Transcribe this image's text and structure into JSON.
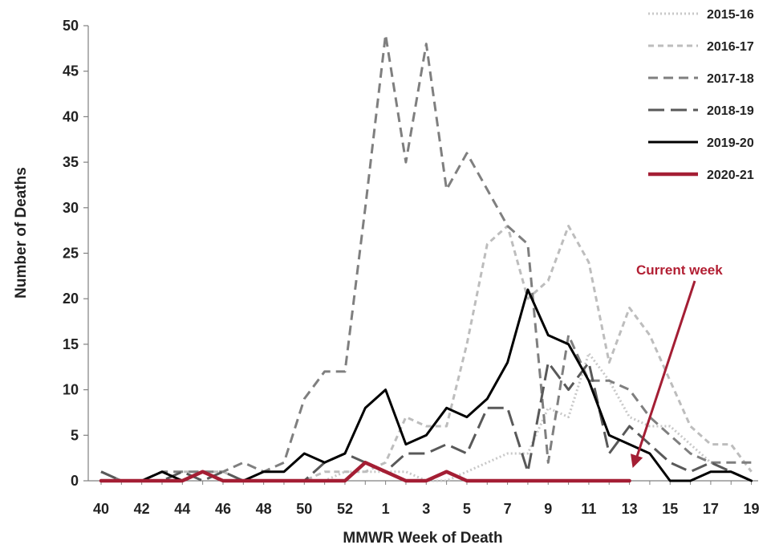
{
  "chart_data": {
    "type": "line",
    "xlabel": "MMWR Week of Death",
    "ylabel": "Number of Deaths",
    "ylim": [
      0,
      50
    ],
    "y_ticks": [
      0,
      5,
      10,
      15,
      20,
      25,
      30,
      35,
      40,
      45,
      50
    ],
    "x_categories": [
      "40",
      "41",
      "42",
      "43",
      "44",
      "45",
      "46",
      "47",
      "48",
      "49",
      "50",
      "51",
      "52",
      "53",
      "1",
      "2",
      "3",
      "4",
      "5",
      "6",
      "7",
      "8",
      "9",
      "10",
      "11",
      "12",
      "13",
      "14",
      "15",
      "16",
      "17",
      "18",
      "19"
    ],
    "x_tick_labels": [
      "40",
      "42",
      "44",
      "46",
      "48",
      "50",
      "52",
      "1",
      "3",
      "5",
      "7",
      "9",
      "11",
      "13",
      "15",
      "17",
      "19"
    ],
    "grid": false,
    "legend_position": "top-right",
    "series": [
      {
        "name": "2015-16",
        "color": "#c8c8c8",
        "style": "dotted",
        "values": [
          1,
          0,
          0,
          0,
          0,
          1,
          0,
          0,
          0,
          0,
          0,
          0,
          1,
          1,
          1,
          1,
          0,
          0,
          1,
          2,
          3,
          3,
          8,
          7,
          14,
          11,
          7,
          6,
          6,
          4,
          2,
          1,
          0
        ]
      },
      {
        "name": "2016-17",
        "color": "#bdbdbd",
        "style": "short-dash",
        "values": [
          1,
          0,
          0,
          0,
          1,
          1,
          1,
          0,
          0,
          0,
          0,
          1,
          1,
          1,
          2,
          7,
          6,
          6,
          15,
          26,
          28,
          20,
          22,
          28,
          24,
          13,
          19,
          16,
          11,
          6,
          4,
          4,
          1
        ]
      },
      {
        "name": "2017-18",
        "color": "#7f7f7f",
        "style": "dash",
        "values": [
          1,
          0,
          0,
          1,
          1,
          1,
          1,
          2,
          1,
          2,
          9,
          12,
          12,
          30,
          49,
          35,
          48,
          32,
          36,
          32,
          28,
          26,
          2,
          16,
          11,
          11,
          10,
          7,
          5,
          3,
          2,
          2,
          2
        ]
      },
      {
        "name": "2018-19",
        "color": "#595959",
        "style": "long-dash",
        "values": [
          1,
          0,
          0,
          0,
          1,
          0,
          1,
          0,
          0,
          0,
          0,
          2,
          3,
          2,
          1,
          3,
          3,
          4,
          3,
          8,
          8,
          1,
          13,
          10,
          13,
          3,
          6,
          4,
          2,
          1,
          2,
          1,
          0
        ]
      },
      {
        "name": "2019-20",
        "color": "#000000",
        "style": "solid",
        "values": [
          0,
          0,
          0,
          1,
          0,
          1,
          0,
          0,
          1,
          1,
          3,
          2,
          3,
          8,
          10,
          4,
          5,
          8,
          7,
          9,
          13,
          21,
          16,
          15,
          11,
          5,
          4,
          3,
          0,
          0,
          1,
          1,
          0
        ]
      },
      {
        "name": "2020-21",
        "color": "#a41e34",
        "style": "solid-thick",
        "values": [
          0,
          0,
          0,
          0,
          0,
          1,
          0,
          0,
          0,
          0,
          0,
          0,
          0,
          2,
          1,
          0,
          0,
          1,
          0,
          0,
          0,
          0,
          0,
          0,
          0,
          0,
          0
        ]
      }
    ],
    "annotation": {
      "text": "Current week",
      "color": "#a41e34",
      "points_to_week": "13"
    }
  }
}
